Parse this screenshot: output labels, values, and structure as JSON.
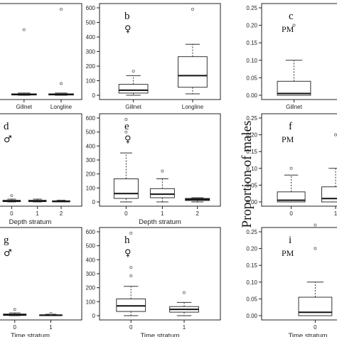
{
  "figure": {
    "ylabel_right": "Proportion of males"
  },
  "chart_data": [
    {
      "id": "a",
      "type": "box",
      "letter": "",
      "symbol": "",
      "ylim": [
        0,
        600
      ],
      "yticks": [],
      "categories": [
        "Gillnet",
        "Longline"
      ],
      "xlabel": "",
      "boxes": [
        {
          "min": 0,
          "q1": 2,
          "median": 5,
          "q3": 10,
          "max": 15,
          "outliers": [
            450
          ]
        },
        {
          "min": 0,
          "q1": 2,
          "median": 5,
          "q3": 10,
          "max": 15,
          "outliers": [
            80,
            590
          ]
        }
      ]
    },
    {
      "id": "b",
      "type": "box",
      "letter": "b",
      "symbol": "♀",
      "ylim": [
        0,
        600
      ],
      "yticks": [
        0,
        100,
        200,
        300,
        400,
        500,
        600
      ],
      "categories": [
        "Gillnet",
        "Longline"
      ],
      "xlabel": "",
      "boxes": [
        {
          "min": 0,
          "q1": 15,
          "median": 35,
          "q3": 75,
          "max": 135,
          "outliers": [
            165
          ]
        },
        {
          "min": 10,
          "q1": 55,
          "median": 135,
          "q3": 265,
          "max": 350,
          "outliers": [
            590
          ]
        }
      ]
    },
    {
      "id": "c",
      "type": "box",
      "letter": "c",
      "symbol": "PM",
      "ylim": [
        0,
        0.25
      ],
      "yticks": [
        0.0,
        0.05,
        0.1,
        0.15,
        0.2,
        0.25
      ],
      "categories": [
        "Gillnet"
      ],
      "xlabel": "",
      "boxes": [
        {
          "min": 0,
          "q1": 0,
          "median": 0.005,
          "q3": 0.04,
          "max": 0.1,
          "outliers": [
            0.2
          ]
        }
      ]
    },
    {
      "id": "d",
      "type": "box",
      "letter": "d",
      "symbol": "♂",
      "ylim": [
        0,
        600
      ],
      "yticks": [],
      "categories": [
        "0",
        "1",
        "2"
      ],
      "xlabel": "Depth stratum",
      "boxes": [
        {
          "min": 0,
          "q1": 2,
          "median": 5,
          "q3": 12,
          "max": 20,
          "outliers": [
            45
          ]
        },
        {
          "min": 0,
          "q1": 2,
          "median": 5,
          "q3": 12,
          "max": 20,
          "outliers": []
        },
        {
          "min": 0,
          "q1": 1,
          "median": 3,
          "q3": 8,
          "max": 12,
          "outliers": []
        }
      ]
    },
    {
      "id": "e",
      "type": "box",
      "letter": "e",
      "symbol": "♀",
      "ylim": [
        0,
        600
      ],
      "yticks": [
        0,
        100,
        200,
        300,
        400,
        500,
        600
      ],
      "categories": [
        "0",
        "1",
        "2"
      ],
      "xlabel": "Depth stratum",
      "boxes": [
        {
          "min": 0,
          "q1": 25,
          "median": 60,
          "q3": 165,
          "max": 350,
          "outliers": [
            500,
            590
          ]
        },
        {
          "min": 0,
          "q1": 30,
          "median": 55,
          "q3": 95,
          "max": 165,
          "outliers": [
            220
          ]
        },
        {
          "min": 0,
          "q1": 10,
          "median": 18,
          "q3": 25,
          "max": 30,
          "outliers": []
        }
      ]
    },
    {
      "id": "f",
      "type": "box",
      "letter": "f",
      "symbol": "PM",
      "ylim": [
        0,
        0.25
      ],
      "yticks": [
        0.0,
        0.05,
        0.1,
        0.15,
        0.2,
        0.25
      ],
      "categories": [
        "0",
        "1"
      ],
      "xlabel": "",
      "boxes": [
        {
          "min": 0,
          "q1": 0,
          "median": 0.005,
          "q3": 0.03,
          "max": 0.08,
          "outliers": [
            0.1
          ]
        },
        {
          "min": 0,
          "q1": 0,
          "median": 0.01,
          "q3": 0.045,
          "max": 0.1,
          "outliers": [
            0.2
          ]
        }
      ]
    },
    {
      "id": "g",
      "type": "box",
      "letter": "g",
      "symbol": "♂",
      "ylim": [
        0,
        600
      ],
      "yticks": [],
      "categories": [
        "0",
        "1"
      ],
      "xlabel": "Time stratum",
      "boxes": [
        {
          "min": 0,
          "q1": 2,
          "median": 5,
          "q3": 12,
          "max": 20,
          "outliers": [
            45
          ]
        },
        {
          "min": 0,
          "q1": 1,
          "median": 3,
          "q3": 6,
          "max": 10,
          "outliers": [
            15
          ]
        }
      ]
    },
    {
      "id": "h",
      "type": "box",
      "letter": "h",
      "symbol": "♀",
      "ylim": [
        0,
        600
      ],
      "yticks": [
        0,
        100,
        200,
        300,
        400,
        500,
        600
      ],
      "categories": [
        "0",
        "1"
      ],
      "xlabel": "Time stratum",
      "boxes": [
        {
          "min": 0,
          "q1": 30,
          "median": 70,
          "q3": 120,
          "max": 210,
          "outliers": [
            285,
            345,
            590
          ]
        },
        {
          "min": 0,
          "q1": 25,
          "median": 45,
          "q3": 65,
          "max": 95,
          "outliers": [
            165
          ]
        }
      ]
    },
    {
      "id": "i",
      "type": "box",
      "letter": "i",
      "symbol": "PM",
      "ylim": [
        0,
        0.25
      ],
      "yticks": [
        0.0,
        0.05,
        0.1,
        0.15,
        0.2,
        0.25
      ],
      "categories": [
        "0"
      ],
      "xlabel": "Time stratum",
      "boxes": [
        {
          "min": 0,
          "q1": 0,
          "median": 0.01,
          "q3": 0.055,
          "max": 0.1,
          "outliers": [
            0.2,
            0.27
          ]
        }
      ]
    }
  ]
}
